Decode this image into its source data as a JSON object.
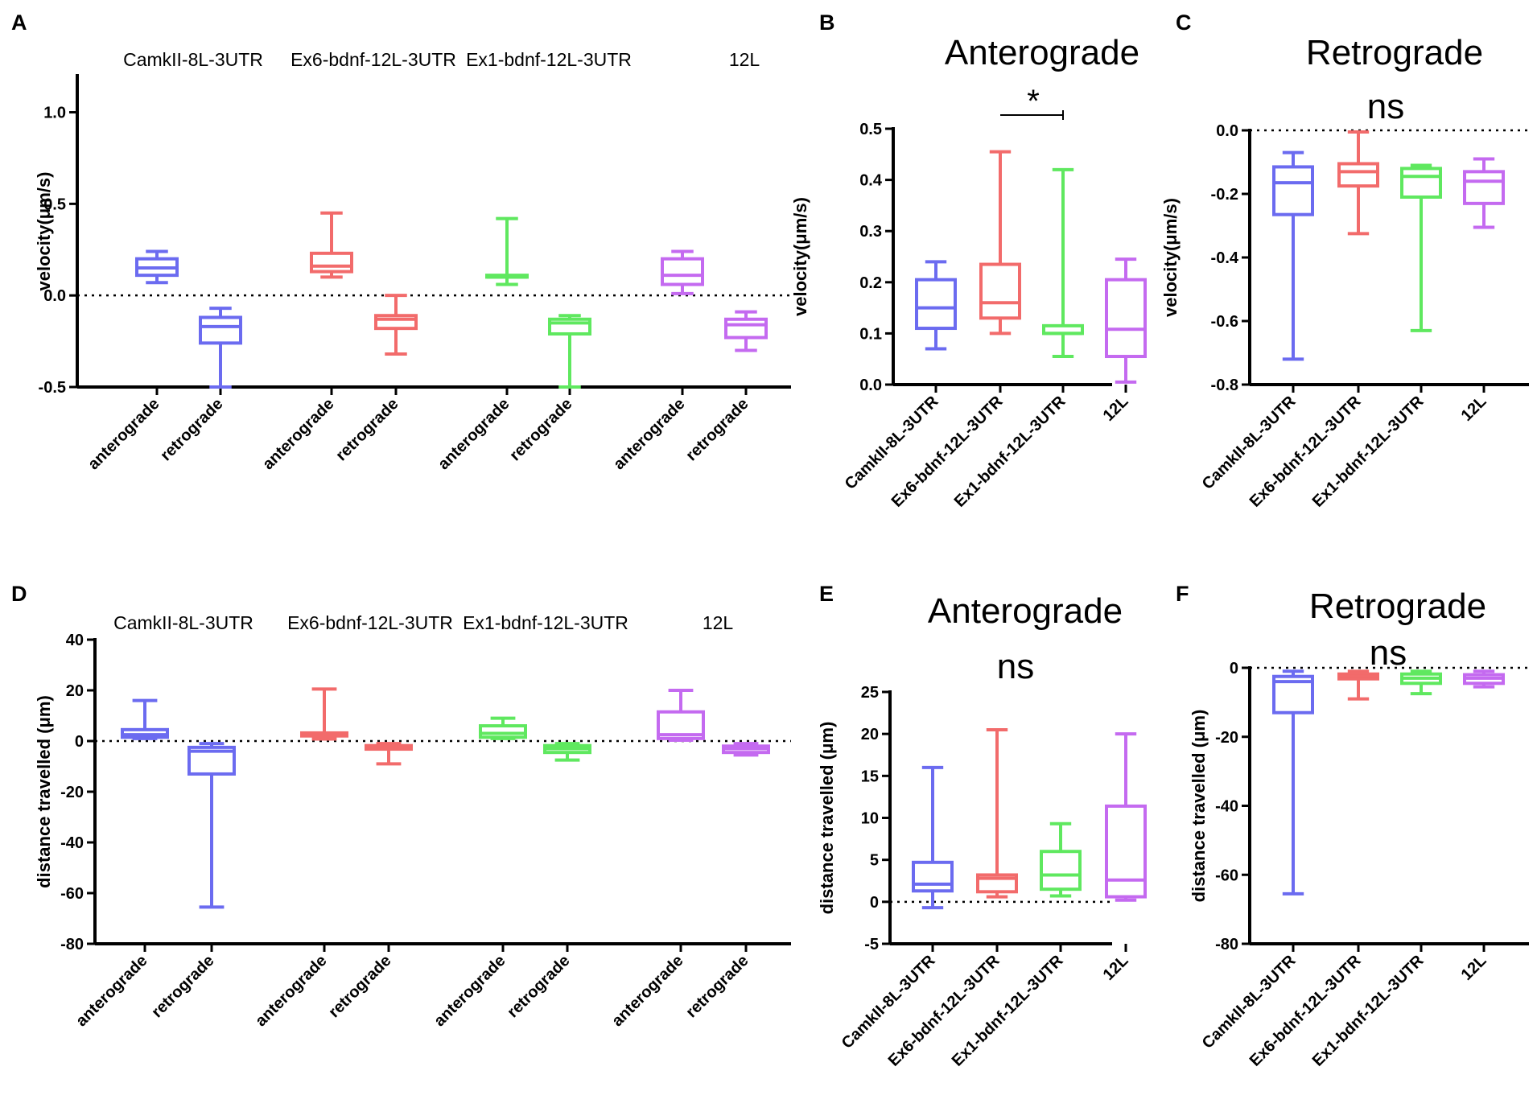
{
  "colors": {
    "CamkII-8L-3UTR": "#6b6bf0",
    "Ex6-bdnf-12L-3UTR": "#f26b6b",
    "Ex1-bdnf-12L-3UTR": "#5fe85f",
    "12L": "#c46af0"
  },
  "chart_data": [
    {
      "panel": "A",
      "type": "boxplot",
      "title": "",
      "group_headers": [
        "CamkII-8L-3UTR",
        "Ex6-bdnf-12L-3UTR",
        "Ex1-bdnf-12L-3UTR",
        "12L"
      ],
      "categories": [
        "anterograde",
        "retrograde",
        "anterograde",
        "retrograde",
        "anterograde",
        "retrograde",
        "anterograde",
        "retrograde"
      ],
      "ylabel": "velocity(μm/s)",
      "ylim": [
        -0.5,
        1.2
      ],
      "yticks": [
        -0.5,
        0.0,
        0.5,
        1.0
      ],
      "ytick_labels": [
        "-0.5",
        "0.0",
        "0.5",
        "1.0"
      ],
      "zero_line": true,
      "series": [
        {
          "group": "CamkII-8L-3UTR",
          "category": "anterograde",
          "min": 0.07,
          "q1": 0.11,
          "median": 0.15,
          "q3": 0.2,
          "max": 0.24
        },
        {
          "group": "CamkII-8L-3UTR",
          "category": "retrograde",
          "min": -0.5,
          "q1": -0.26,
          "median": -0.17,
          "q3": -0.12,
          "max": -0.07
        },
        {
          "group": "Ex6-bdnf-12L-3UTR",
          "category": "anterograde",
          "min": 0.1,
          "q1": 0.13,
          "median": 0.16,
          "q3": 0.23,
          "max": 0.45
        },
        {
          "group": "Ex6-bdnf-12L-3UTR",
          "category": "retrograde",
          "min": -0.32,
          "q1": -0.18,
          "median": -0.13,
          "q3": -0.11,
          "max": 0.0
        },
        {
          "group": "Ex1-bdnf-12L-3UTR",
          "category": "anterograde",
          "min": 0.06,
          "q1": 0.1,
          "median": 0.1,
          "q3": 0.11,
          "max": 0.42
        },
        {
          "group": "Ex1-bdnf-12L-3UTR",
          "category": "retrograde",
          "min": -0.5,
          "q1": -0.21,
          "median": -0.15,
          "q3": -0.13,
          "max": -0.11
        },
        {
          "group": "12L",
          "category": "anterograde",
          "min": 0.01,
          "q1": 0.06,
          "median": 0.11,
          "q3": 0.2,
          "max": 0.24
        },
        {
          "group": "12L",
          "category": "retrograde",
          "min": -0.3,
          "q1": -0.23,
          "median": -0.16,
          "q3": -0.13,
          "max": -0.09
        }
      ]
    },
    {
      "panel": "B",
      "type": "boxplot",
      "title": "Anterograde",
      "categories": [
        "CamkII-8L-3UTR",
        "Ex6-bdnf-12L-3UTR",
        "Ex1-bdnf-12L-3UTR",
        "12L"
      ],
      "ylabel": "velocity(μm/s)",
      "ylim": [
        0.0,
        0.5
      ],
      "yticks": [
        0.0,
        0.1,
        0.2,
        0.3,
        0.4,
        0.5
      ],
      "ytick_labels": [
        "0.0",
        "0.1",
        "0.2",
        "0.3",
        "0.4",
        "0.5"
      ],
      "zero_line": false,
      "significance": {
        "label": "*",
        "from": 1,
        "to": 2
      },
      "series": [
        {
          "group": "CamkII-8L-3UTR",
          "min": 0.07,
          "q1": 0.11,
          "median": 0.15,
          "q3": 0.205,
          "max": 0.24
        },
        {
          "group": "Ex6-bdnf-12L-3UTR",
          "min": 0.1,
          "q1": 0.13,
          "median": 0.16,
          "q3": 0.235,
          "max": 0.455
        },
        {
          "group": "Ex1-bdnf-12L-3UTR",
          "min": 0.055,
          "q1": 0.1,
          "median": 0.1,
          "q3": 0.115,
          "max": 0.42
        },
        {
          "group": "12L",
          "min": 0.005,
          "q1": 0.055,
          "median": 0.108,
          "q3": 0.205,
          "max": 0.245
        }
      ]
    },
    {
      "panel": "C",
      "type": "boxplot",
      "title": "Retrograde",
      "subtitle": "ns",
      "categories": [
        "CamkII-8L-3UTR",
        "Ex6-bdnf-12L-3UTR",
        "Ex1-bdnf-12L-3UTR",
        "12L"
      ],
      "ylabel": "velocity(μm/s)",
      "ylim": [
        -0.8,
        0.0
      ],
      "yticks": [
        -0.8,
        -0.6,
        -0.4,
        -0.2,
        0.0
      ],
      "ytick_labels": [
        "-0.8",
        "-0.6",
        "-0.4",
        "-0.2",
        "0.0"
      ],
      "zero_line": true,
      "series": [
        {
          "group": "CamkII-8L-3UTR",
          "min": -0.72,
          "q1": -0.265,
          "median": -0.165,
          "q3": -0.115,
          "max": -0.07
        },
        {
          "group": "Ex6-bdnf-12L-3UTR",
          "min": -0.325,
          "q1": -0.175,
          "median": -0.13,
          "q3": -0.105,
          "max": -0.005
        },
        {
          "group": "Ex1-bdnf-12L-3UTR",
          "min": -0.63,
          "q1": -0.21,
          "median": -0.145,
          "q3": -0.12,
          "max": -0.11
        },
        {
          "group": "12L",
          "min": -0.305,
          "q1": -0.23,
          "median": -0.16,
          "q3": -0.13,
          "max": -0.09
        }
      ]
    },
    {
      "panel": "D",
      "type": "boxplot",
      "title": "",
      "group_headers": [
        "CamkII-8L-3UTR",
        "Ex6-bdnf-12L-3UTR",
        "Ex1-bdnf-12L-3UTR",
        "12L"
      ],
      "categories": [
        "anterograde",
        "retrograde",
        "anterograde",
        "retrograde",
        "anterograde",
        "retrograde",
        "anterograde",
        "retrograde"
      ],
      "ylabel": "distance travelled (μm)",
      "ylim": [
        -80,
        40
      ],
      "yticks": [
        -80,
        -60,
        -40,
        -20,
        0,
        20,
        40
      ],
      "ytick_labels": [
        "-80",
        "-60",
        "-40",
        "-20",
        "0",
        "20",
        "40"
      ],
      "zero_line": true,
      "series": [
        {
          "group": "CamkII-8L-3UTR",
          "category": "anterograde",
          "min": 1,
          "q1": 1.5,
          "median": 2.5,
          "q3": 4.5,
          "max": 16
        },
        {
          "group": "CamkII-8L-3UTR",
          "category": "retrograde",
          "min": -65.5,
          "q1": -13,
          "median": -4,
          "q3": -2.5,
          "max": -1
        },
        {
          "group": "Ex6-bdnf-12L-3UTR",
          "category": "anterograde",
          "min": 0.8,
          "q1": 2,
          "median": 2.8,
          "q3": 3.2,
          "max": 20.5
        },
        {
          "group": "Ex6-bdnf-12L-3UTR",
          "category": "retrograde",
          "min": -9,
          "q1": -3.2,
          "median": -2.5,
          "q3": -1.8,
          "max": -1
        },
        {
          "group": "Ex1-bdnf-12L-3UTR",
          "category": "anterograde",
          "min": 1,
          "q1": 1.5,
          "median": 3,
          "q3": 6,
          "max": 9
        },
        {
          "group": "Ex1-bdnf-12L-3UTR",
          "category": "retrograde",
          "min": -7.5,
          "q1": -4.5,
          "median": -3,
          "q3": -1.8,
          "max": -1
        },
        {
          "group": "12L",
          "category": "anterograde",
          "min": 0.3,
          "q1": 1,
          "median": 2.5,
          "q3": 11.5,
          "max": 20
        },
        {
          "group": "12L",
          "category": "retrograde",
          "min": -5.5,
          "q1": -4.5,
          "median": -3,
          "q3": -2,
          "max": -1
        }
      ]
    },
    {
      "panel": "E",
      "type": "boxplot",
      "title": "Anterograde",
      "subtitle": "ns",
      "categories": [
        "CamkII-8L-3UTR",
        "Ex6-bdnf-12L-3UTR",
        "Ex1-bdnf-12L-3UTR",
        "12L"
      ],
      "ylabel": "distance travelled (μm)",
      "ylim": [
        -5,
        25
      ],
      "yticks": [
        -5,
        0,
        5,
        10,
        15,
        20,
        25
      ],
      "ytick_labels": [
        "-5",
        "0",
        "5",
        "10",
        "15",
        "20",
        "25"
      ],
      "zero_line": true,
      "series": [
        {
          "group": "CamkII-8L-3UTR",
          "min": -0.7,
          "q1": 1.3,
          "median": 2.1,
          "q3": 4.7,
          "max": 16
        },
        {
          "group": "Ex6-bdnf-12L-3UTR",
          "min": 0.6,
          "q1": 1.2,
          "median": 2.8,
          "q3": 3.2,
          "max": 20.5
        },
        {
          "group": "Ex1-bdnf-12L-3UTR",
          "min": 0.7,
          "q1": 1.5,
          "median": 3.2,
          "q3": 6,
          "max": 9.3
        },
        {
          "group": "12L",
          "min": 0.2,
          "q1": 0.6,
          "median": 2.6,
          "q3": 11.4,
          "max": 20
        }
      ]
    },
    {
      "panel": "F",
      "type": "boxplot",
      "title": "Retrograde",
      "subtitle": "ns",
      "categories": [
        "CamkII-8L-3UTR",
        "Ex6-bdnf-12L-3UTR",
        "Ex1-bdnf-12L-3UTR",
        "12L"
      ],
      "ylabel": "distance travelled (μm)",
      "ylim": [
        -80,
        0
      ],
      "yticks": [
        -80,
        -60,
        -40,
        -20,
        0
      ],
      "ytick_labels": [
        "-80",
        "-60",
        "-40",
        "-20",
        "0"
      ],
      "zero_line": true,
      "series": [
        {
          "group": "CamkII-8L-3UTR",
          "min": -65.5,
          "q1": -13,
          "median": -4,
          "q3": -2.5,
          "max": -1
        },
        {
          "group": "Ex6-bdnf-12L-3UTR",
          "min": -9,
          "q1": -3.2,
          "median": -2.5,
          "q3": -1.8,
          "max": -1
        },
        {
          "group": "Ex1-bdnf-12L-3UTR",
          "min": -7.5,
          "q1": -4.5,
          "median": -3,
          "q3": -1.8,
          "max": -1
        },
        {
          "group": "12L",
          "min": -5.5,
          "q1": -4.5,
          "median": -3,
          "q3": -2,
          "max": -1
        }
      ]
    }
  ]
}
